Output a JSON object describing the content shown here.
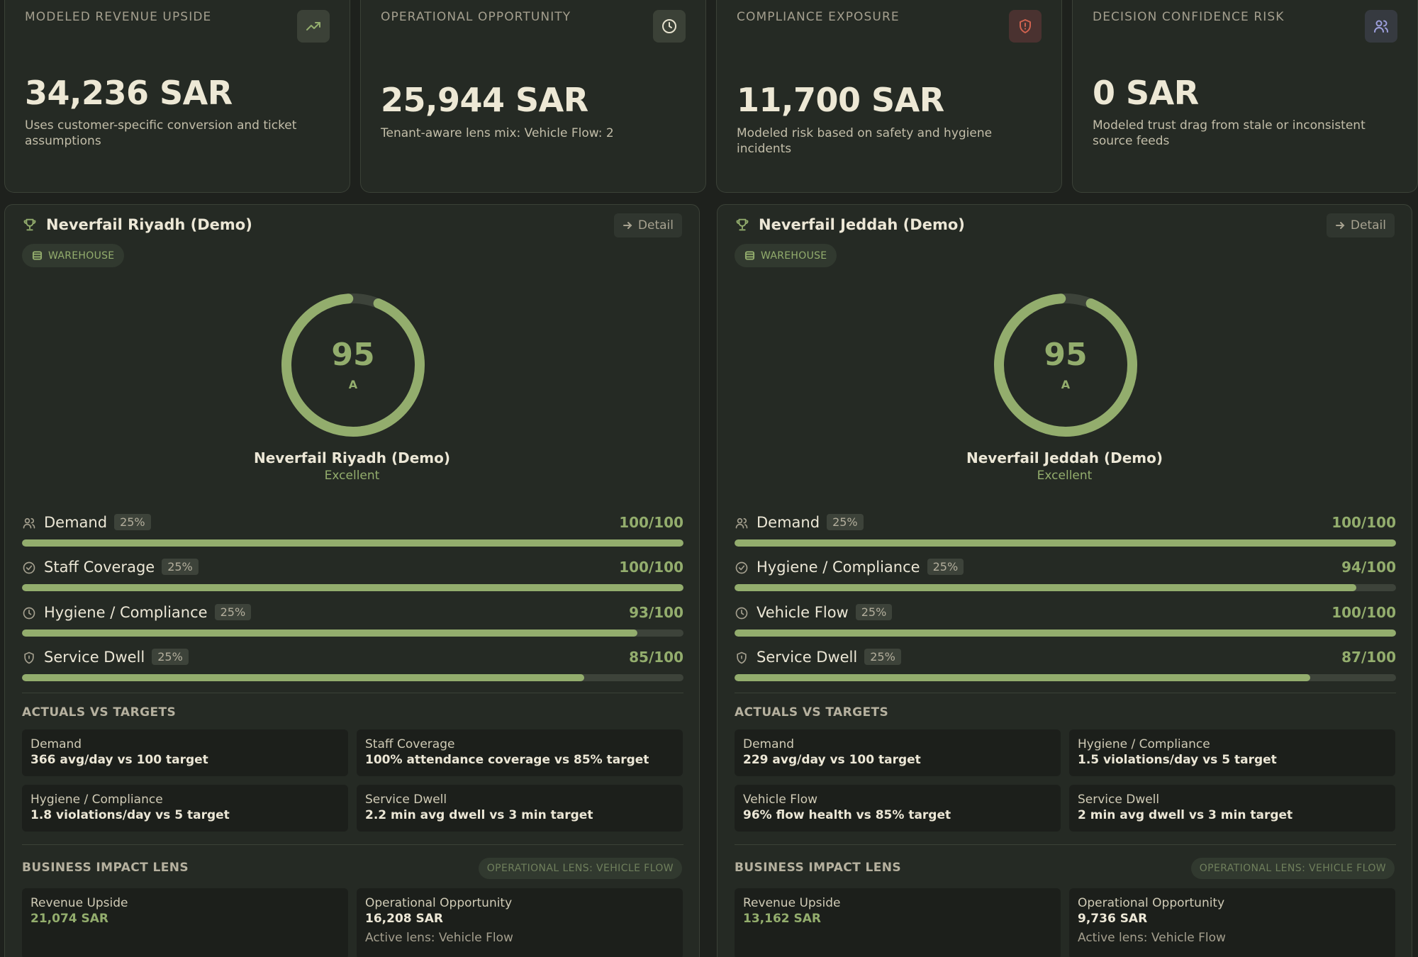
{
  "colors": {
    "accent": "#93ad6d",
    "background": "#1e211d",
    "card": "#252a24",
    "track": "#3d433a",
    "danger": "#d0624f",
    "violet": "#9d9fdc"
  },
  "kpis": [
    {
      "label": "MODELED REVENUE UPSIDE",
      "icon": "trending-up-icon",
      "value": "34,236 SAR",
      "sub": "Uses customer-specific conversion and ticket assumptions"
    },
    {
      "label": "OPERATIONAL OPPORTUNITY",
      "icon": "clock-icon",
      "value": "25,944 SAR",
      "sub": "Tenant-aware lens mix: Vehicle Flow: 2"
    },
    {
      "label": "COMPLIANCE EXPOSURE",
      "icon": "shield-alert-icon",
      "value": "11,700 SAR",
      "sub": "Modeled risk based on safety and hygiene incidents"
    },
    {
      "label": "DECISION CONFIDENCE RISK",
      "icon": "users-icon",
      "value": "0 SAR",
      "sub": "Modeled trust drag from stale or inconsistent source feeds"
    }
  ],
  "sites": [
    {
      "name": "Neverfail Riyadh (Demo)",
      "detail_label": "Detail",
      "type_tag": "WAREHOUSE",
      "score": "95",
      "grade": "A",
      "status": "Excellent",
      "metrics": [
        {
          "icon": "users-icon",
          "name": "Demand",
          "weight": "25%",
          "score": "100/100",
          "value": 100
        },
        {
          "icon": "check-circle-icon",
          "name": "Staff Coverage",
          "weight": "25%",
          "score": "100/100",
          "value": 100
        },
        {
          "icon": "clock-icon",
          "name": "Hygiene / Compliance",
          "weight": "25%",
          "score": "93/100",
          "value": 93
        },
        {
          "icon": "shield-icon",
          "name": "Service Dwell",
          "weight": "25%",
          "score": "85/100",
          "value": 85
        }
      ],
      "actuals_title": "ACTUALS VS TARGETS",
      "actuals": [
        {
          "label": "Demand",
          "value": "366 avg/day vs 100 target"
        },
        {
          "label": "Staff Coverage",
          "value": "100% attendance coverage vs 85% target"
        },
        {
          "label": "Hygiene / Compliance",
          "value": "1.8 violations/day vs 5 target"
        },
        {
          "label": "Service Dwell",
          "value": "2.2 min avg dwell vs 3 min target"
        }
      ],
      "impact_title": "BUSINESS IMPACT LENS",
      "lens_tag": "OPERATIONAL LENS: VEHICLE FLOW",
      "impact": [
        {
          "label": "Revenue Upside",
          "value": "21,074 SAR",
          "note": ""
        },
        {
          "label": "Operational Opportunity",
          "value": "16,208 SAR",
          "note": "Active lens: Vehicle Flow"
        }
      ]
    },
    {
      "name": "Neverfail Jeddah (Demo)",
      "detail_label": "Detail",
      "type_tag": "WAREHOUSE",
      "score": "95",
      "grade": "A",
      "status": "Excellent",
      "metrics": [
        {
          "icon": "users-icon",
          "name": "Demand",
          "weight": "25%",
          "score": "100/100",
          "value": 100
        },
        {
          "icon": "check-circle-icon",
          "name": "Hygiene / Compliance",
          "weight": "25%",
          "score": "94/100",
          "value": 94
        },
        {
          "icon": "clock-icon",
          "name": "Vehicle Flow",
          "weight": "25%",
          "score": "100/100",
          "value": 100
        },
        {
          "icon": "shield-icon",
          "name": "Service Dwell",
          "weight": "25%",
          "score": "87/100",
          "value": 87
        }
      ],
      "actuals_title": "ACTUALS VS TARGETS",
      "actuals": [
        {
          "label": "Demand",
          "value": "229 avg/day vs 100 target"
        },
        {
          "label": "Hygiene / Compliance",
          "value": "1.5 violations/day vs 5 target"
        },
        {
          "label": "Vehicle Flow",
          "value": "96% flow health vs 85% target"
        },
        {
          "label": "Service Dwell",
          "value": "2 min avg dwell vs 3 min target"
        }
      ],
      "impact_title": "BUSINESS IMPACT LENS",
      "lens_tag": "OPERATIONAL LENS: VEHICLE FLOW",
      "impact": [
        {
          "label": "Revenue Upside",
          "value": "13,162 SAR",
          "note": ""
        },
        {
          "label": "Operational Opportunity",
          "value": "9,736 SAR",
          "note": "Active lens: Vehicle Flow"
        }
      ]
    }
  ]
}
